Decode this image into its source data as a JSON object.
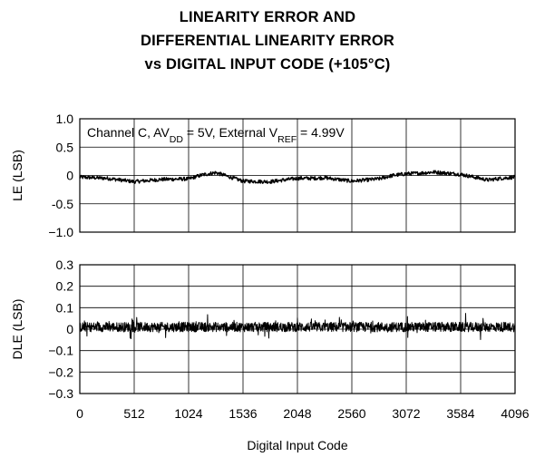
{
  "title_lines": [
    "LINEARITY ERROR AND",
    "DIFFERENTIAL LINEARITY ERROR",
    "vs DIGITAL INPUT CODE (+105°C)"
  ],
  "chart_data": [
    {
      "type": "line",
      "name": "le-panel",
      "ylabel": "LE (LSB)",
      "xlabel": "",
      "xlim": [
        0,
        4096
      ],
      "ylim": [
        -1.0,
        1.0
      ],
      "y_ticks": [
        1.0,
        0.5,
        0,
        -0.5,
        -1.0
      ],
      "y_tick_labels": [
        "1.0",
        "0.5",
        "0",
        "-0.5",
        "−1.0"
      ],
      "grid": true,
      "annotation": {
        "parts": [
          "Channel C, AV",
          "DD",
          " = 5V, External V",
          "REF",
          " = 4.99V"
        ],
        "position": "top-left"
      },
      "series": [
        {
          "x": [
            0,
            256,
            384,
            512,
            768,
            1024,
            1152,
            1280,
            1400,
            1536,
            1792,
            2048,
            2200,
            2304,
            2560,
            2816,
            2944,
            3072,
            3200,
            3328,
            3584,
            3840,
            3968,
            4096
          ],
          "values": [
            -0.03,
            -0.05,
            -0.08,
            -0.11,
            -0.07,
            -0.06,
            0.01,
            0.05,
            -0.02,
            -0.1,
            -0.11,
            -0.05,
            -0.05,
            -0.04,
            -0.1,
            -0.06,
            0.0,
            0.03,
            0.04,
            0.06,
            0.02,
            -0.08,
            -0.05,
            -0.03
          ]
        }
      ]
    },
    {
      "type": "line",
      "name": "dle-panel",
      "ylabel": "DLE (LSB)",
      "xlabel": "Digital Input Code",
      "xlim": [
        0,
        4096
      ],
      "ylim": [
        -0.3,
        0.3
      ],
      "x_ticks": [
        0,
        512,
        1024,
        1536,
        2048,
        2560,
        3072,
        3584,
        4096
      ],
      "x_tick_labels": [
        "0",
        "512",
        "1024",
        "1536",
        "2048",
        "2560",
        "3072",
        "3584",
        "4096"
      ],
      "y_ticks": [
        0.3,
        0.2,
        0.1,
        0,
        -0.1,
        -0.2,
        -0.3
      ],
      "y_tick_labels": [
        "0.3",
        "0.2",
        "0.1",
        "0",
        "−0.1",
        "−0.2",
        "−0.3"
      ],
      "grid": true,
      "series": [
        {
          "x": [
            0,
            4096
          ],
          "values": [
            0.01,
            0.01
          ]
        }
      ]
    }
  ]
}
